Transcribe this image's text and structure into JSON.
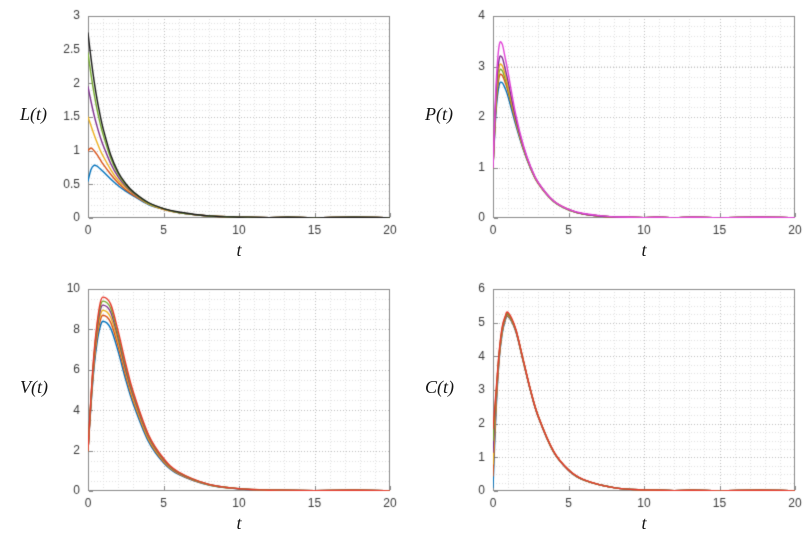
{
  "figure": {
    "background": "#ffffff"
  },
  "style": {
    "axis_color": "#8a8a8a",
    "tick_color": "#3c3c3c",
    "grid_major": "#c0c0c0",
    "grid_minor": "#e2e2e2",
    "tick_font": "12px 'Liberation Sans', sans-serif"
  },
  "chart_data": [
    {
      "type": "line",
      "title": "",
      "xlabel": "t",
      "ylabel": "L(t)",
      "xlim": [
        0,
        20
      ],
      "ylim": [
        0,
        3
      ],
      "xticks": [
        0,
        5,
        10,
        15,
        20
      ],
      "yticks": [
        0,
        0.5,
        1,
        1.5,
        2,
        2.5,
        3
      ],
      "xminor": 1,
      "yminor": 0.1,
      "grid": true,
      "legend": "none",
      "x": [
        0,
        0.2,
        0.4,
        0.6,
        0.8,
        1,
        1.5,
        2,
        2.5,
        3,
        4,
        5,
        6,
        8,
        10,
        12,
        15,
        20
      ],
      "series": [
        {
          "color": "#0072bd",
          "values": [
            0.55,
            0.72,
            0.78,
            0.77,
            0.73,
            0.69,
            0.58,
            0.48,
            0.4,
            0.33,
            0.2,
            0.13,
            0.08,
            0.03,
            0.012,
            0.005,
            0.002,
            0
          ]
        },
        {
          "color": "#d95319",
          "values": [
            1.0,
            1.04,
            1.0,
            0.94,
            0.87,
            0.8,
            0.65,
            0.52,
            0.42,
            0.34,
            0.21,
            0.13,
            0.08,
            0.03,
            0.012,
            0.005,
            0.002,
            0
          ]
        },
        {
          "color": "#edb120",
          "values": [
            1.5,
            1.37,
            1.24,
            1.12,
            1.01,
            0.92,
            0.72,
            0.56,
            0.45,
            0.36,
            0.21,
            0.13,
            0.08,
            0.03,
            0.012,
            0.005,
            0.002,
            0
          ]
        },
        {
          "color": "#7e2f8e",
          "values": [
            1.95,
            1.73,
            1.53,
            1.36,
            1.21,
            1.08,
            0.81,
            0.61,
            0.47,
            0.37,
            0.22,
            0.14,
            0.08,
            0.03,
            0.012,
            0.005,
            0.002,
            0
          ]
        },
        {
          "color": "#77ac30",
          "values": [
            2.45,
            2.13,
            1.85,
            1.61,
            1.41,
            1.24,
            0.89,
            0.65,
            0.49,
            0.38,
            0.22,
            0.14,
            0.08,
            0.03,
            0.012,
            0.005,
            0.002,
            0
          ]
        },
        {
          "color": "#1a1a1a",
          "values": [
            2.75,
            2.37,
            2.04,
            1.76,
            1.53,
            1.33,
            0.94,
            0.68,
            0.51,
            0.39,
            0.23,
            0.14,
            0.09,
            0.031,
            0.012,
            0.005,
            0.002,
            0
          ]
        }
      ]
    },
    {
      "type": "line",
      "title": "",
      "xlabel": "t",
      "ylabel": "P(t)",
      "xlim": [
        0,
        20
      ],
      "ylim": [
        0,
        4
      ],
      "xticks": [
        0,
        5,
        10,
        15,
        20
      ],
      "yticks": [
        0,
        1,
        2,
        3,
        4
      ],
      "xminor": 1,
      "yminor": 0.2,
      "grid": true,
      "legend": "none",
      "x": [
        0,
        0.2,
        0.4,
        0.6,
        0.8,
        1,
        1.5,
        2,
        2.5,
        3,
        4,
        5,
        6,
        8,
        10,
        12,
        15,
        20
      ],
      "series": [
        {
          "color": "#0072bd",
          "values": [
            1.0,
            2.1,
            2.62,
            2.68,
            2.57,
            2.4,
            1.85,
            1.36,
            0.97,
            0.68,
            0.33,
            0.16,
            0.08,
            0.02,
            0.008,
            0.003,
            0,
            0
          ]
        },
        {
          "color": "#d95319",
          "values": [
            1.0,
            2.2,
            2.78,
            2.83,
            2.69,
            2.5,
            1.9,
            1.38,
            0.98,
            0.68,
            0.33,
            0.16,
            0.08,
            0.02,
            0.008,
            0.003,
            0,
            0
          ]
        },
        {
          "color": "#77ac30",
          "values": [
            1.0,
            2.28,
            2.88,
            2.92,
            2.76,
            2.55,
            1.92,
            1.39,
            0.98,
            0.69,
            0.33,
            0.16,
            0.08,
            0.02,
            0.008,
            0.003,
            0,
            0
          ]
        },
        {
          "color": "#edb120",
          "values": [
            1.0,
            2.36,
            2.98,
            3.02,
            2.84,
            2.6,
            1.95,
            1.4,
            0.99,
            0.69,
            0.34,
            0.17,
            0.08,
            0.02,
            0.008,
            0.003,
            0,
            0
          ]
        },
        {
          "color": "#7e2f8e",
          "values": [
            1.0,
            2.46,
            3.13,
            3.18,
            2.96,
            2.7,
            1.98,
            1.42,
            1.0,
            0.7,
            0.34,
            0.17,
            0.08,
            0.02,
            0.008,
            0.003,
            0,
            0
          ]
        },
        {
          "color": "#e243d8",
          "values": [
            1.0,
            2.62,
            3.4,
            3.45,
            3.18,
            2.88,
            2.06,
            1.45,
            1.01,
            0.7,
            0.34,
            0.17,
            0.09,
            0.022,
            0.008,
            0.003,
            0,
            0
          ]
        }
      ]
    },
    {
      "type": "line",
      "title": "",
      "xlabel": "t",
      "ylabel": "V(t)",
      "xlim": [
        0,
        20
      ],
      "ylim": [
        0,
        10
      ],
      "xticks": [
        0,
        5,
        10,
        15,
        20
      ],
      "yticks": [
        0,
        2,
        4,
        6,
        8,
        10
      ],
      "xminor": 1,
      "yminor": 0.5,
      "grid": true,
      "legend": "none",
      "x": [
        0,
        0.2,
        0.4,
        0.6,
        0.8,
        1,
        1.5,
        2,
        2.5,
        3,
        4,
        5,
        6,
        8,
        10,
        12,
        15,
        20
      ],
      "series": [
        {
          "color": "#0072bd",
          "values": [
            2.0,
            4.25,
            6.1,
            7.35,
            8.1,
            8.4,
            8.05,
            6.9,
            5.5,
            4.3,
            2.45,
            1.4,
            0.82,
            0.29,
            0.1,
            0.04,
            0.01,
            0
          ]
        },
        {
          "color": "#d95319",
          "values": [
            2.0,
            4.35,
            6.3,
            7.6,
            8.4,
            8.7,
            8.35,
            7.15,
            5.7,
            4.45,
            2.55,
            1.45,
            0.85,
            0.3,
            0.11,
            0.04,
            0.01,
            0
          ]
        },
        {
          "color": "#edb120",
          "values": [
            2.0,
            4.45,
            6.45,
            7.8,
            8.65,
            8.95,
            8.6,
            7.35,
            5.85,
            4.55,
            2.6,
            1.5,
            0.87,
            0.31,
            0.11,
            0.04,
            0.01,
            0
          ]
        },
        {
          "color": "#7e2f8e",
          "values": [
            2.0,
            4.55,
            6.6,
            8.0,
            8.9,
            9.2,
            8.85,
            7.55,
            6.0,
            4.7,
            2.7,
            1.55,
            0.9,
            0.32,
            0.11,
            0.04,
            0.01,
            0
          ]
        },
        {
          "color": "#77ac30",
          "values": [
            2.0,
            4.62,
            6.72,
            8.15,
            9.08,
            9.4,
            9.05,
            7.7,
            6.15,
            4.8,
            2.75,
            1.58,
            0.92,
            0.32,
            0.12,
            0.04,
            0.01,
            0
          ]
        },
        {
          "color": "#e8392b",
          "values": [
            2.0,
            4.7,
            6.85,
            8.3,
            9.28,
            9.6,
            9.25,
            7.9,
            6.3,
            4.9,
            2.8,
            1.62,
            0.94,
            0.33,
            0.12,
            0.04,
            0.01,
            0
          ]
        }
      ]
    },
    {
      "type": "line",
      "title": "",
      "xlabel": "t",
      "ylabel": "C(t)",
      "xlim": [
        0,
        20
      ],
      "ylim": [
        0,
        6
      ],
      "xticks": [
        0,
        5,
        10,
        15,
        20
      ],
      "yticks": [
        0,
        1,
        2,
        3,
        4,
        5,
        6
      ],
      "xminor": 1,
      "yminor": 0.25,
      "grid": true,
      "legend": "none",
      "x": [
        0,
        0.2,
        0.4,
        0.6,
        0.8,
        1,
        1.5,
        2,
        2.5,
        3,
        4,
        5,
        6,
        8,
        10,
        12,
        15,
        20
      ],
      "series": [
        {
          "color": "#0072bd",
          "values": [
            0.1,
            2.35,
            3.85,
            4.65,
            5.05,
            5.18,
            4.75,
            3.85,
            2.95,
            2.2,
            1.17,
            0.62,
            0.33,
            0.1,
            0.03,
            0.01,
            0,
            0
          ]
        },
        {
          "color": "#d95319",
          "values": [
            0.45,
            2.5,
            3.9,
            4.7,
            5.08,
            5.2,
            4.77,
            3.86,
            2.95,
            2.2,
            1.17,
            0.62,
            0.33,
            0.1,
            0.03,
            0.01,
            0,
            0
          ]
        },
        {
          "color": "#edb120",
          "values": [
            0.8,
            2.62,
            3.95,
            4.72,
            5.1,
            5.22,
            4.78,
            3.87,
            2.96,
            2.21,
            1.18,
            0.62,
            0.33,
            0.1,
            0.03,
            0.01,
            0,
            0
          ]
        },
        {
          "color": "#7e2f8e",
          "values": [
            1.15,
            2.75,
            4.0,
            4.76,
            5.12,
            5.24,
            4.79,
            3.88,
            2.96,
            2.21,
            1.18,
            0.62,
            0.33,
            0.1,
            0.03,
            0.01,
            0,
            0
          ]
        },
        {
          "color": "#77ac30",
          "values": [
            1.5,
            2.85,
            4.05,
            4.8,
            5.15,
            5.26,
            4.8,
            3.89,
            2.97,
            2.22,
            1.18,
            0.63,
            0.33,
            0.1,
            0.03,
            0.01,
            0,
            0
          ]
        },
        {
          "color": "#e8392b",
          "values": [
            1.85,
            2.95,
            4.1,
            4.85,
            5.18,
            5.3,
            4.82,
            3.9,
            2.98,
            2.22,
            1.19,
            0.63,
            0.34,
            0.1,
            0.03,
            0.01,
            0,
            0
          ]
        }
      ]
    }
  ]
}
